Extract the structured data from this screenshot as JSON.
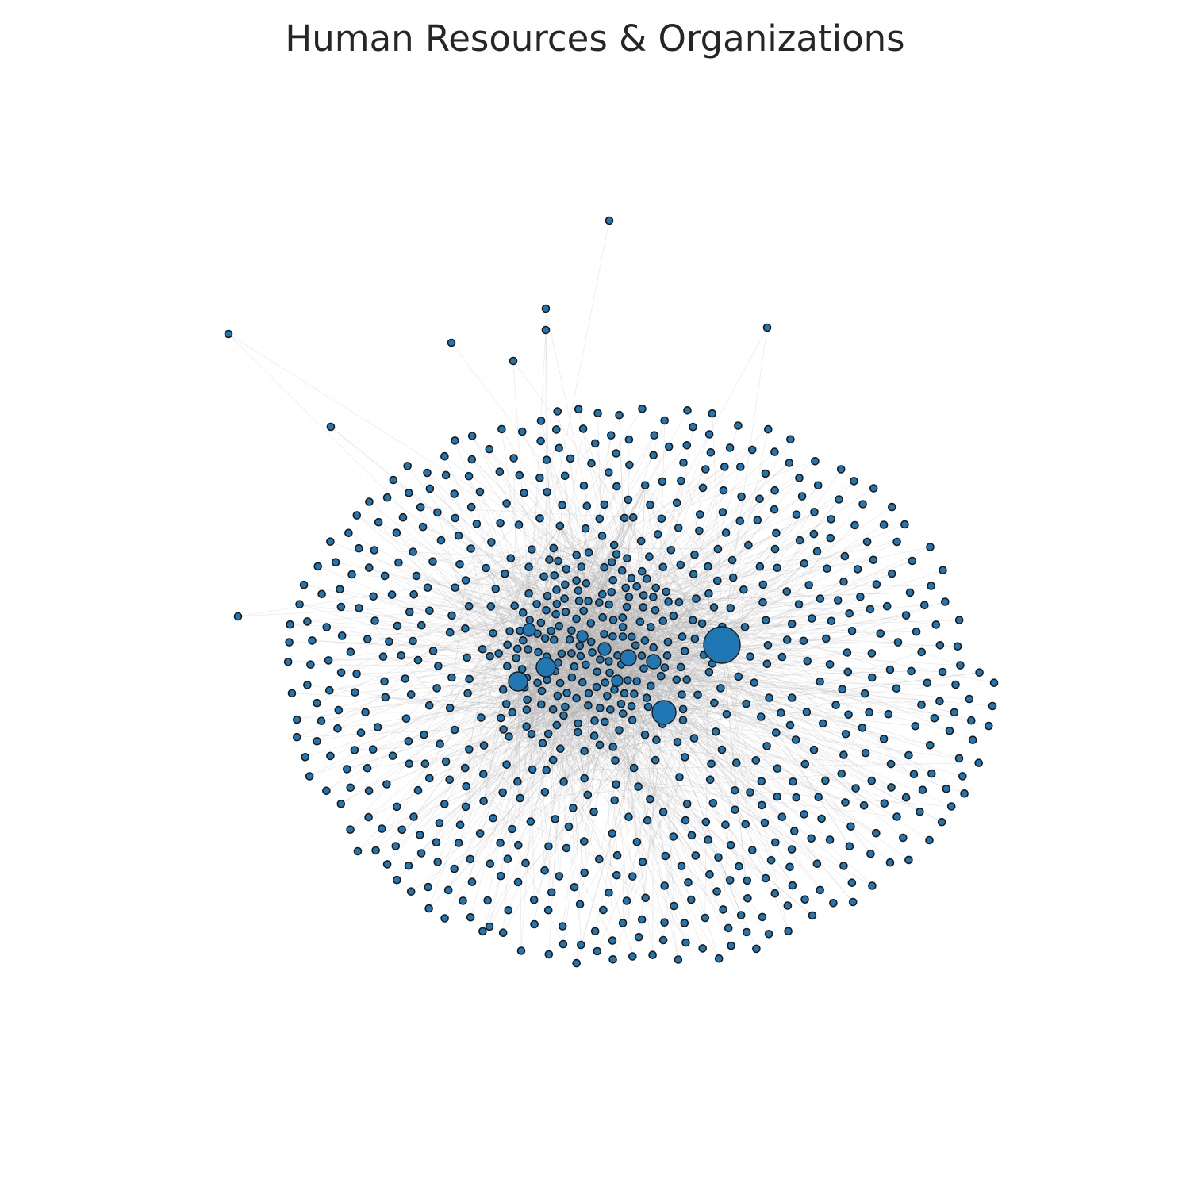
{
  "title": "Human Resources & Organizations",
  "colors": {
    "node_fill": "#1f77b4",
    "node_stroke": "#1a1a1a",
    "edge": "#b0b0b0",
    "background": "#ffffff"
  }
}
